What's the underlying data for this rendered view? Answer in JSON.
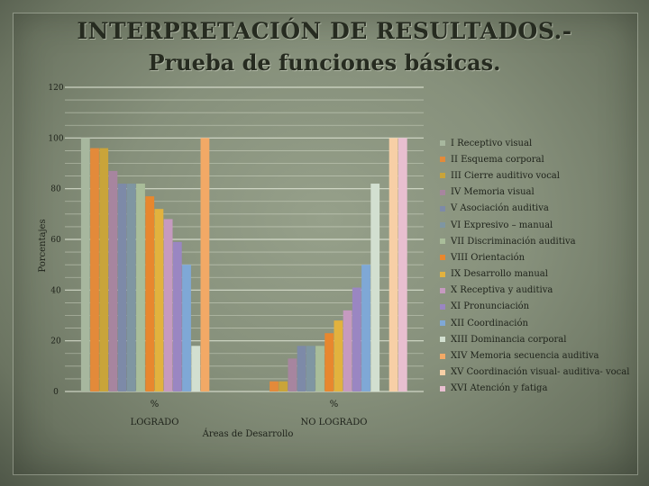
{
  "title_line1": "INTERPRETACIÓN DE RESULTADOS.-",
  "title_line2": "Prueba de funciones básicas.",
  "chart_data": {
    "type": "bar",
    "title": "INTERPRETACIÓN DE RESULTADOS.- Prueba de funciones básicas.",
    "xlabel": "Áreas de Desarrollo",
    "ylabel": "Porcentajes",
    "ylim": [
      0,
      120
    ],
    "yticks": [
      0,
      20,
      40,
      60,
      80,
      100,
      120
    ],
    "grid": true,
    "legend_position": "right",
    "categories": [
      "LOGRADO",
      "NO LOGRADO"
    ],
    "category_sublabels": [
      "%",
      "%"
    ],
    "series": [
      {
        "name": "I Receptivo visual",
        "color": "#a7b79e",
        "values": [
          100,
          0
        ]
      },
      {
        "name": "II Esquema corporal",
        "color": "#e38a3a",
        "values": [
          96,
          4
        ]
      },
      {
        "name": "III Cierre auditivo vocal",
        "color": "#c9a43a",
        "values": [
          96,
          4
        ]
      },
      {
        "name": "IV Memoria visual",
        "color": "#a7859f",
        "values": [
          87,
          13
        ]
      },
      {
        "name": "V Asociación auditiva",
        "color": "#7d8aa8",
        "values": [
          82,
          18
        ]
      },
      {
        "name": "VI Expresivo – manual",
        "color": "#7f96a2",
        "values": [
          82,
          18
        ]
      },
      {
        "name": "VII Discriminación auditiva",
        "color": "#a9bd9a",
        "values": [
          82,
          18
        ]
      },
      {
        "name": "VIII Orientación",
        "color": "#e8872e",
        "values": [
          77,
          23
        ]
      },
      {
        "name": "IX Desarrollo manual",
        "color": "#e2b23e",
        "values": [
          72,
          28
        ]
      },
      {
        "name": "X Receptiva y auditiva",
        "color": "#c69ac0",
        "values": [
          68,
          32
        ]
      },
      {
        "name": "XI Pronunciación",
        "color": "#9a86c2",
        "values": [
          59,
          41
        ]
      },
      {
        "name": "XII Coordinación",
        "color": "#7fa8d6",
        "values": [
          50,
          50
        ]
      },
      {
        "name": "XIII Dominancia corporal",
        "color": "#d2dfd0",
        "values": [
          18,
          82
        ]
      },
      {
        "name": "XIV Memoria secuencia auditiva",
        "color": "#f2a966",
        "values": [
          100,
          0
        ]
      },
      {
        "name": "XV Coordinación visual- auditiva- vocal",
        "color": "#f7cfa6",
        "values": [
          0,
          100
        ]
      },
      {
        "name": "XVI Atención y fatiga",
        "color": "#e8bfd0",
        "values": [
          0,
          100
        ]
      }
    ]
  }
}
